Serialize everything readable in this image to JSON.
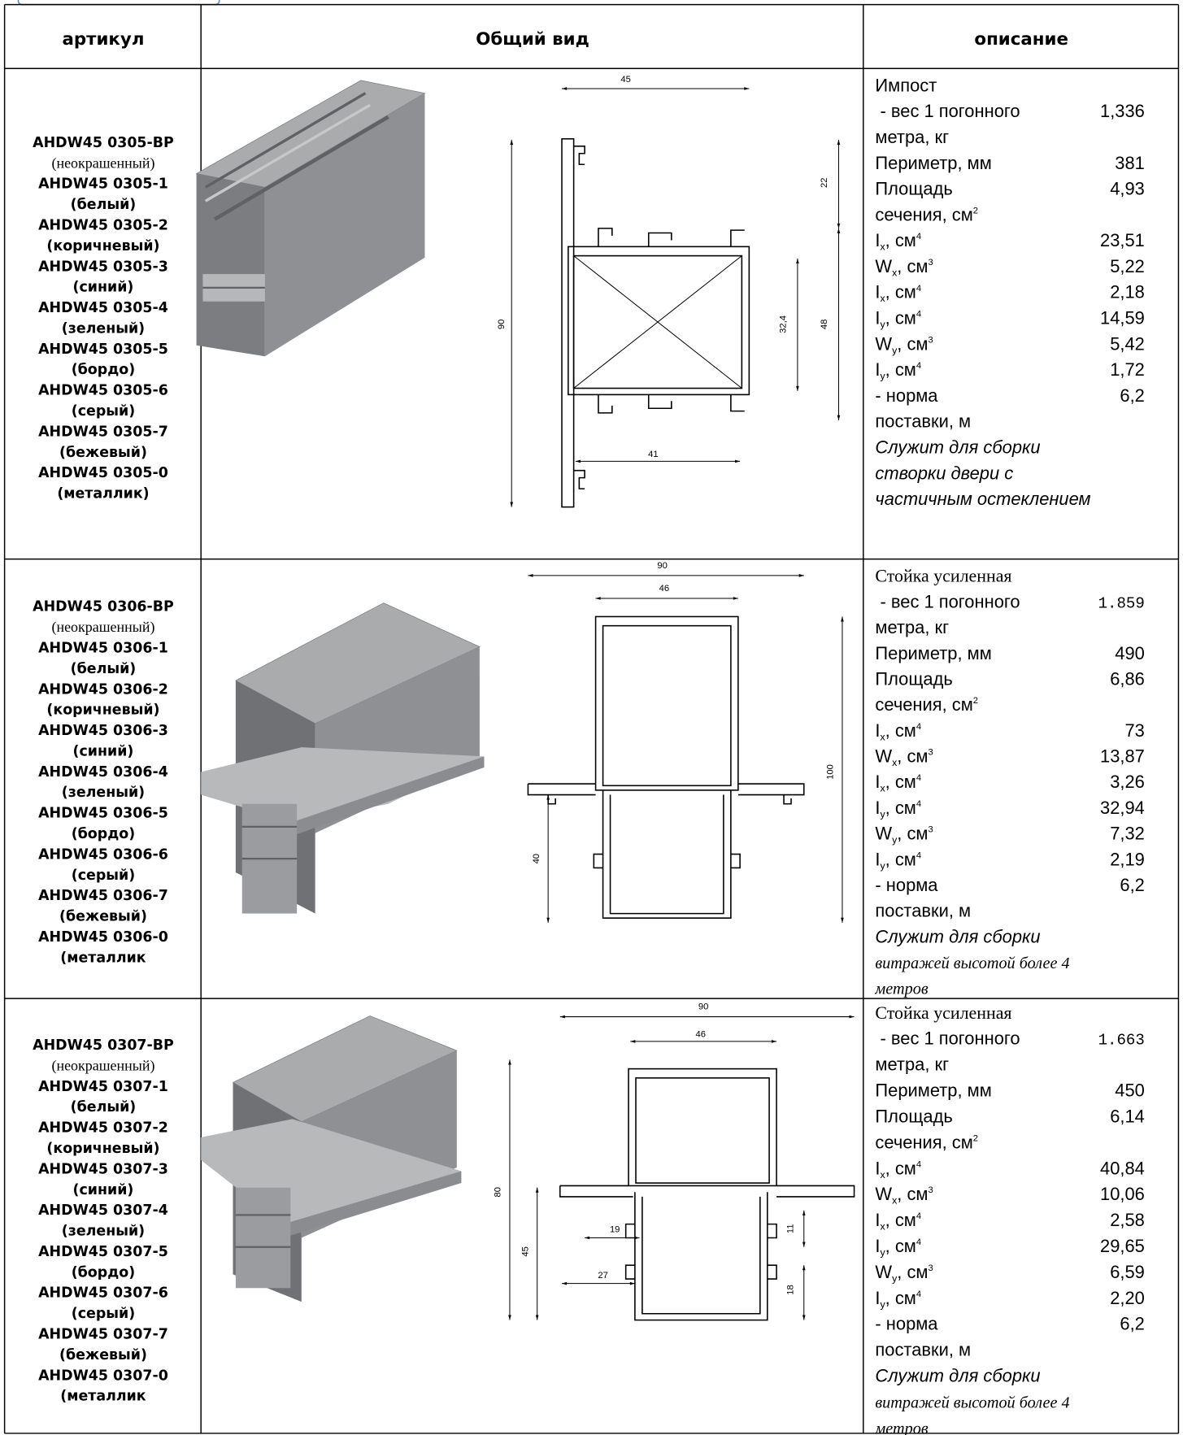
{
  "header": [
    "артикул",
    "Общий вид",
    "описание"
  ],
  "rows": [
    {
      "article": [
        "AHDW45 0305-BP",
        "(неокрашенный)",
        "AHDW45 0305-1",
        "(белый)",
        "AHDW45 0305-2",
        "(коричневый)",
        "AHDW45 0305-3",
        "(синий)",
        "AHDW45 0305-4",
        "(зеленый)",
        "AHDW45 0305-5",
        "(бордо)",
        "AHDW45 0305-6",
        "(серый)",
        "AHDW45 0305-7",
        "(бежевый)",
        "AHDW45 0305-0",
        "(металлик)"
      ],
      "dims": [
        "45",
        "22",
        "90",
        "32,4",
        "48",
        "41"
      ],
      "desc": [
        {
          "t": "Импост"
        },
        {
          "t": " - вес 1 погонного",
          "v": "1,336"
        },
        {
          "t": "метра, кг"
        },
        {
          "t": "Периметр, мм",
          "v": "381"
        },
        {
          "t": "Площадь",
          "v": "4,93"
        },
        {
          "t": "сечения, см",
          "sup": "2"
        },
        {
          "t": "I",
          "sub": "x",
          "t2": ", см",
          "sup": "4",
          "v": "23,51"
        },
        {
          "t": "W",
          "sub": "x",
          "t2": ", см",
          "sup": "3",
          "v": "5,22"
        },
        {
          "t": "I",
          "sub": "x",
          "t2": ", см",
          "sup": "4",
          "v": "2,18"
        },
        {
          "t": "I",
          "sub": "y",
          "t2": ", см",
          "sup": "4",
          "v": "14,59"
        },
        {
          "t": "W",
          "sub": "y",
          "t2": ", см",
          "sup": "3",
          "v": "5,42"
        },
        {
          "t": "I",
          "sub": "y",
          "t2": ", см",
          "sup": "4",
          "v": "1,72"
        },
        {
          "t": "- норма",
          "v": "6,2"
        },
        {
          "t": "поставки, м"
        },
        {
          "t": "Служит для сборки",
          "font": "italic"
        },
        {
          "t": "створки двери с",
          "font": "italic"
        },
        {
          "t": "частичным остеклением",
          "font": "italic"
        }
      ]
    },
    {
      "article": [
        "AHDW45 0306-BP",
        "(неокрашенный)",
        "AHDW45 0306-1",
        "(белый)",
        "AHDW45 0306-2",
        "(коричневый)",
        "AHDW45 0306-3",
        "(синий)",
        "AHDW45 0306-4",
        "(зеленый)",
        "AHDW45 0306-5",
        "(бордо)",
        "AHDW45 0306-6",
        "(серый)",
        "AHDW45 0306-7",
        "(бежевый)",
        "AHDW45 0306-0",
        "(металлик"
      ],
      "dims": [
        "90",
        "46",
        "100",
        "40"
      ],
      "desc": [
        {
          "t": "Стойка усиленная",
          "font": "serif"
        },
        {
          "t": " - вес 1 погонного",
          "v": "1.859",
          "value_font": "mono"
        },
        {
          "t": "метра, кг"
        },
        {
          "t": "Периметр, мм",
          "v": "490"
        },
        {
          "t": "Площадь",
          "v": "6,86"
        },
        {
          "t": "сечения, см",
          "sup": "2"
        },
        {
          "t": "I",
          "sub": "x",
          "t2": ", см",
          "sup": "4",
          "v": "73"
        },
        {
          "t": "W",
          "sub": "x",
          "t2": ", см",
          "sup": "3",
          "v": "13,87"
        },
        {
          "t": "I",
          "sub": "x",
          "t2": ", см",
          "sup": "4",
          "v": "3,26"
        },
        {
          "t": "I",
          "sub": "y",
          "t2": ", см",
          "sup": "4",
          "v": "32,94"
        },
        {
          "t": "W",
          "sub": "y",
          "t2": ", см",
          "sup": "3",
          "v": "7,32"
        },
        {
          "t": "I",
          "sub": "y",
          "t2": ", см",
          "sup": "4",
          "v": "2,19"
        },
        {
          "t": "- норма",
          "v": "6,2"
        },
        {
          "t": "поставки, м"
        },
        {
          "t": "Служит для сборки",
          "font": "italic"
        },
        {
          "t": "витражей высотой более 4",
          "font": "note"
        },
        {
          "t": "метров",
          "font": "note"
        }
      ]
    },
    {
      "article": [
        "AHDW45 0307-BP",
        "(неокрашенный)",
        "AHDW45 0307-1",
        "(белый)",
        "AHDW45 0307-2",
        "(коричневый)",
        "AHDW45 0307-3",
        "(синий)",
        "AHDW45 0307-4",
        "(зеленый)",
        "AHDW45 0307-5",
        "(бордо)",
        "AHDW45 0307-6",
        "(серый)",
        "AHDW45 0307-7",
        "(бежевый)",
        "AHDW45 0307-0",
        "(металлик"
      ],
      "dims": [
        "90",
        "46",
        "80",
        "45",
        "19",
        "27",
        "11",
        "18"
      ],
      "desc": [
        {
          "t": "Стойка усиленная",
          "font": "serif"
        },
        {
          "t": " - вес 1 погонного",
          "v": "1.663",
          "value_font": "mono"
        },
        {
          "t": "метра, кг"
        },
        {
          "t": "Периметр, мм",
          "v": "450"
        },
        {
          "t": "Площадь",
          "v": "6,14"
        },
        {
          "t": "сечения, см",
          "sup": "2"
        },
        {
          "t": "I",
          "sub": "x",
          "t2": ", см",
          "sup": "4",
          "v": "40,84"
        },
        {
          "t": "W",
          "sub": "x",
          "t2": ", см",
          "sup": "3",
          "v": "10,06"
        },
        {
          "t": "I",
          "sub": "x",
          "t2": ", см",
          "sup": "4",
          "v": "2,58"
        },
        {
          "t": "I",
          "sub": "y",
          "t2": ", см",
          "sup": "4",
          "v": "29,65"
        },
        {
          "t": "W",
          "sub": "y",
          "t2": ", см",
          "sup": "3",
          "v": "6,59"
        },
        {
          "t": "I",
          "sub": "y",
          "t2": ", см",
          "sup": "4",
          "v": "2,20"
        },
        {
          "t": "- норма",
          "v": "6,2"
        },
        {
          "t": "поставки, м"
        },
        {
          "t": "Служит для сборки",
          "font": "italic"
        },
        {
          "t": "витражей высотой более 4",
          "font": "note"
        },
        {
          "t": "метров",
          "font": "note"
        }
      ]
    }
  ]
}
